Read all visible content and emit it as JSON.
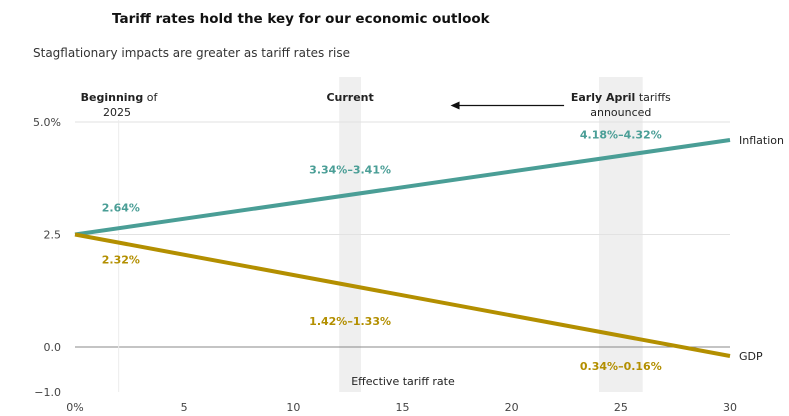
{
  "chart_data": {
    "type": "line",
    "title": "Tariff rates hold the key for our economic outlook",
    "subtitle": "Stagflationary impacts are greater as tariff rates rise",
    "xlabel": "Effective tariff rate",
    "ylabel": "",
    "xlim": [
      0,
      30
    ],
    "ylim": [
      -1.0,
      5.0
    ],
    "x_ticks": [
      {
        "value": 0,
        "label": "0%"
      },
      {
        "value": 5,
        "label": "5"
      },
      {
        "value": 10,
        "label": "10"
      },
      {
        "value": 15,
        "label": "15"
      },
      {
        "value": 20,
        "label": "20"
      },
      {
        "value": 25,
        "label": "25"
      },
      {
        "value": 30,
        "label": "30"
      }
    ],
    "y_ticks": [
      {
        "value": 5.0,
        "label": "5.0%"
      },
      {
        "value": 2.5,
        "label": "2.5"
      },
      {
        "value": 0.0,
        "label": "0.0"
      },
      {
        "value": -1.0,
        "label": "−1.0"
      }
    ],
    "grid": true,
    "series": [
      {
        "name": "Inflation",
        "color": "#4a9e96",
        "points": [
          [
            0,
            2.5
          ],
          [
            30,
            4.6
          ]
        ]
      },
      {
        "name": "GDP",
        "color": "#b38f00",
        "points": [
          [
            0,
            2.5
          ],
          [
            30,
            -0.2
          ]
        ]
      }
    ],
    "bands": [
      {
        "x0": 12.1,
        "x1": 13.1,
        "label": "Current"
      },
      {
        "x0": 24.0,
        "x1": 26.0,
        "label_bold": "Early April",
        "label_rest": " tariffs",
        "label_line2": "announced"
      }
    ],
    "markers": [
      {
        "x": 2.0,
        "label_bold": "Beginning",
        "label_rest": " of",
        "label_line2": "2025"
      }
    ],
    "data_labels": [
      {
        "text": "2.64%",
        "series": "Inflation",
        "x": 2.1,
        "y": 3.1
      },
      {
        "text": "3.34%–3.41%",
        "series": "Inflation",
        "x": 12.6,
        "y": 3.95
      },
      {
        "text": "4.18%–4.32%",
        "series": "Inflation",
        "x": 25.0,
        "y": 4.72
      },
      {
        "text": "2.32%",
        "series": "GDP",
        "x": 2.1,
        "y": 1.95
      },
      {
        "text": "1.42%–1.33%",
        "series": "GDP",
        "x": 12.6,
        "y": 0.58
      },
      {
        "text": "0.34%–0.16%",
        "series": "GDP",
        "x": 25.0,
        "y": -0.42
      }
    ],
    "arrow": {
      "direction": "left",
      "from_x": 22.4,
      "to_x": 17.2,
      "y": 5.73
    }
  }
}
